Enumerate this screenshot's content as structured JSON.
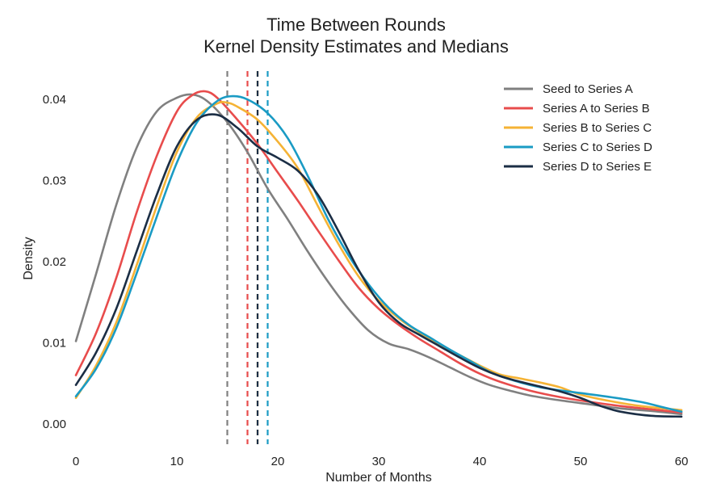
{
  "chart_data": {
    "type": "line",
    "title": [
      "Time Between Rounds",
      "Kernel Density Estimates and Medians"
    ],
    "xlabel": "Number of Months",
    "ylabel": "Density",
    "xlim": [
      0,
      60
    ],
    "ylim": [
      -0.0025,
      0.0425
    ],
    "xticks": [
      0,
      10,
      20,
      30,
      40,
      50,
      60
    ],
    "xtick_labels": [
      "0",
      "10",
      "20",
      "30",
      "40",
      "50",
      "60"
    ],
    "yticks": [
      0.0,
      0.01,
      0.02,
      0.03,
      0.04
    ],
    "ytick_labels": [
      "0.00",
      "0.01",
      "0.02",
      "0.03",
      "0.04"
    ],
    "grid": false,
    "legend_position": "top-right",
    "series": [
      {
        "name": "Seed to Series A",
        "color": "#808080",
        "median": 15,
        "points": [
          [
            0,
            0.0102
          ],
          [
            2,
            0.0185
          ],
          [
            4,
            0.027
          ],
          [
            6,
            0.034
          ],
          [
            8,
            0.0385
          ],
          [
            10,
            0.0402
          ],
          [
            11.5,
            0.0406
          ],
          [
            13,
            0.0398
          ],
          [
            15,
            0.0372
          ],
          [
            17,
            0.0335
          ],
          [
            19,
            0.029
          ],
          [
            21,
            0.0252
          ],
          [
            23,
            0.0212
          ],
          [
            25,
            0.0175
          ],
          [
            27,
            0.0142
          ],
          [
            29,
            0.0115
          ],
          [
            31,
            0.0099
          ],
          [
            33,
            0.0092
          ],
          [
            35,
            0.0082
          ],
          [
            37,
            0.007
          ],
          [
            39,
            0.0058
          ],
          [
            41,
            0.0048
          ],
          [
            43,
            0.0041
          ],
          [
            45,
            0.0035
          ],
          [
            48,
            0.0029
          ],
          [
            51,
            0.0024
          ],
          [
            54,
            0.0019
          ],
          [
            57,
            0.0016
          ],
          [
            60,
            0.0012
          ]
        ]
      },
      {
        "name": "Series A to Series B",
        "color": "#E84C4C",
        "median": 17,
        "points": [
          [
            0,
            0.006
          ],
          [
            2,
            0.0112
          ],
          [
            4,
            0.018
          ],
          [
            6,
            0.026
          ],
          [
            8,
            0.033
          ],
          [
            10,
            0.0385
          ],
          [
            11.5,
            0.0405
          ],
          [
            12.8,
            0.041
          ],
          [
            14,
            0.0402
          ],
          [
            16,
            0.0375
          ],
          [
            18,
            0.0345
          ],
          [
            20,
            0.031
          ],
          [
            22,
            0.0275
          ],
          [
            24,
            0.0238
          ],
          [
            26,
            0.0202
          ],
          [
            28,
            0.0168
          ],
          [
            30,
            0.0142
          ],
          [
            32,
            0.0122
          ],
          [
            34,
            0.0105
          ],
          [
            36,
            0.009
          ],
          [
            38,
            0.0075
          ],
          [
            40,
            0.0062
          ],
          [
            42,
            0.0052
          ],
          [
            45,
            0.0041
          ],
          [
            48,
            0.0033
          ],
          [
            51,
            0.0027
          ],
          [
            54,
            0.0022
          ],
          [
            57,
            0.0018
          ],
          [
            60,
            0.0014
          ]
        ]
      },
      {
        "name": "Series B to Series C",
        "color": "#F5B335",
        "median": 18,
        "points": [
          [
            0,
            0.0032
          ],
          [
            2,
            0.0072
          ],
          [
            4,
            0.0125
          ],
          [
            6,
            0.0195
          ],
          [
            8,
            0.0268
          ],
          [
            10,
            0.0335
          ],
          [
            12,
            0.0378
          ],
          [
            14,
            0.0395
          ],
          [
            15,
            0.0396
          ],
          [
            16,
            0.0391
          ],
          [
            18,
            0.0375
          ],
          [
            20,
            0.0348
          ],
          [
            22,
            0.0315
          ],
          [
            24,
            0.0268
          ],
          [
            26,
            0.0222
          ],
          [
            28,
            0.0182
          ],
          [
            30,
            0.0152
          ],
          [
            32,
            0.013
          ],
          [
            34,
            0.0113
          ],
          [
            36,
            0.0098
          ],
          [
            38,
            0.0085
          ],
          [
            40,
            0.0072
          ],
          [
            42,
            0.0061
          ],
          [
            44,
            0.0056
          ],
          [
            46,
            0.0051
          ],
          [
            48,
            0.0045
          ],
          [
            50,
            0.0036
          ],
          [
            53,
            0.0028
          ],
          [
            56,
            0.0022
          ],
          [
            60,
            0.0017
          ]
        ]
      },
      {
        "name": "Series C to Series D",
        "color": "#1A9BC4",
        "median": 19,
        "points": [
          [
            0,
            0.0034
          ],
          [
            2,
            0.0068
          ],
          [
            4,
            0.0118
          ],
          [
            6,
            0.0185
          ],
          [
            8,
            0.0255
          ],
          [
            10,
            0.0322
          ],
          [
            12,
            0.0372
          ],
          [
            14,
            0.0398
          ],
          [
            15.5,
            0.0404
          ],
          [
            17,
            0.04
          ],
          [
            19,
            0.0383
          ],
          [
            21,
            0.0352
          ],
          [
            23,
            0.0305
          ],
          [
            25,
            0.0252
          ],
          [
            27,
            0.0208
          ],
          [
            29,
            0.0172
          ],
          [
            31,
            0.0143
          ],
          [
            33,
            0.0122
          ],
          [
            35,
            0.0107
          ],
          [
            37,
            0.0092
          ],
          [
            39,
            0.0078
          ],
          [
            41,
            0.0064
          ],
          [
            43,
            0.0055
          ],
          [
            45,
            0.0048
          ],
          [
            47,
            0.0043
          ],
          [
            50,
            0.0038
          ],
          [
            53,
            0.0033
          ],
          [
            56,
            0.0027
          ],
          [
            58,
            0.0021
          ],
          [
            60,
            0.0015
          ]
        ]
      },
      {
        "name": "Series D to Series E",
        "color": "#1B2E45",
        "median": 18,
        "points": [
          [
            0,
            0.0048
          ],
          [
            2,
            0.0088
          ],
          [
            4,
            0.0142
          ],
          [
            6,
            0.0212
          ],
          [
            8,
            0.0282
          ],
          [
            10,
            0.0342
          ],
          [
            12,
            0.0375
          ],
          [
            14,
            0.0381
          ],
          [
            16,
            0.0365
          ],
          [
            18,
            0.0342
          ],
          [
            20,
            0.0328
          ],
          [
            22,
            0.0312
          ],
          [
            24,
            0.0282
          ],
          [
            26,
            0.0238
          ],
          [
            28,
            0.019
          ],
          [
            30,
            0.015
          ],
          [
            32,
            0.0125
          ],
          [
            34,
            0.011
          ],
          [
            36,
            0.0096
          ],
          [
            38,
            0.0082
          ],
          [
            40,
            0.0069
          ],
          [
            42,
            0.0059
          ],
          [
            44,
            0.0052
          ],
          [
            46,
            0.0046
          ],
          [
            48,
            0.004
          ],
          [
            50,
            0.0032
          ],
          [
            52,
            0.0022
          ],
          [
            54,
            0.0015
          ],
          [
            57,
            0.001
          ],
          [
            60,
            0.0009
          ]
        ]
      }
    ]
  }
}
